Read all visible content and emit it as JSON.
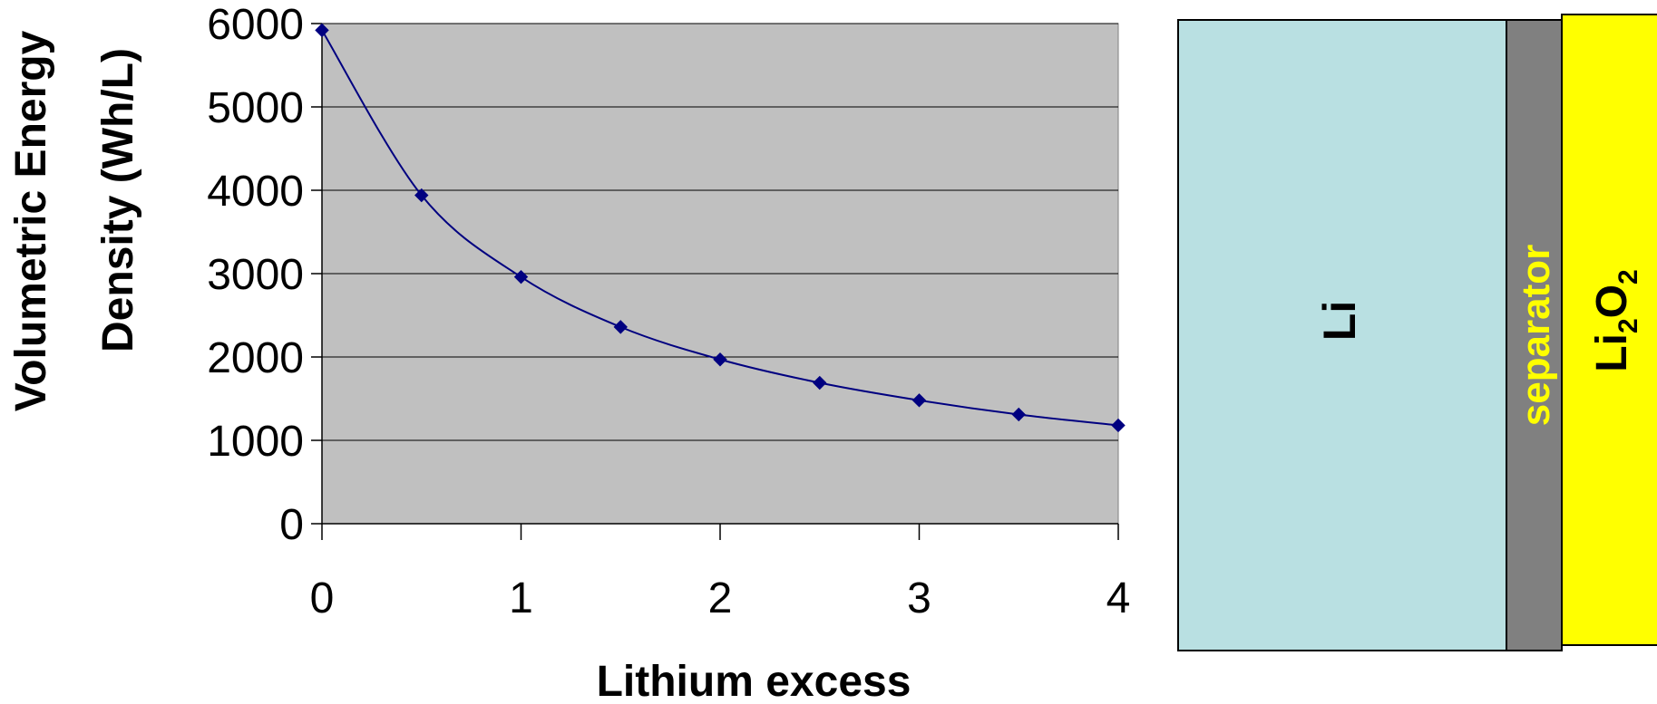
{
  "chart_data": {
    "type": "line",
    "x": [
      0,
      0.5,
      1,
      1.5,
      2,
      2.5,
      3,
      3.5,
      4
    ],
    "y": [
      5920,
      3940,
      2960,
      2360,
      1970,
      1690,
      1480,
      1310,
      1180
    ],
    "xlabel": "Lithium excess",
    "ylabel_lines": [
      "Volumetric Energy",
      "Density (Wh/L)"
    ],
    "xlim": [
      0,
      4
    ],
    "ylim": [
      0,
      6000
    ],
    "x_ticks": [
      "0",
      "1",
      "2",
      "3",
      "4"
    ],
    "y_ticks": [
      "0",
      "1000",
      "2000",
      "3000",
      "4000",
      "5000",
      "6000"
    ],
    "grid": "horizontal",
    "plot_background": "#c0c0c0",
    "line_color": "#000080",
    "marker": "diamond"
  },
  "schematic": {
    "anode": {
      "label": "Li",
      "color": "#b9e0e2"
    },
    "separator": {
      "label": "separator",
      "color": "#808080",
      "text_color": "#ffff00"
    },
    "cathode": {
      "label_main": "Li",
      "sub1": "2",
      "mid": "O",
      "sub2": "2",
      "color": "#ffff00"
    }
  }
}
